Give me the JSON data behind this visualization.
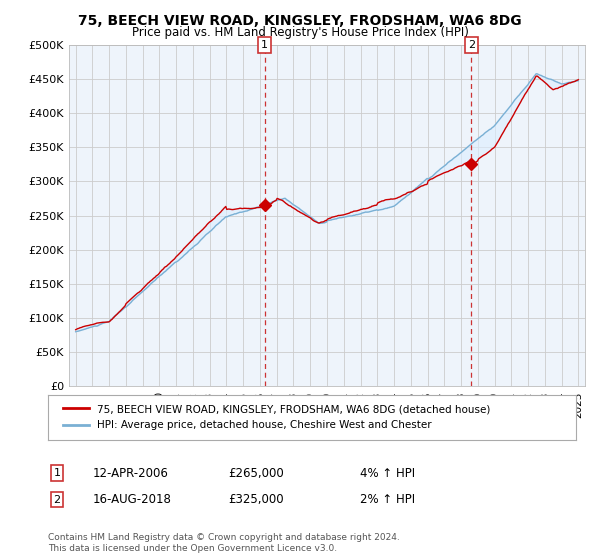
{
  "title": "75, BEECH VIEW ROAD, KINGSLEY, FRODSHAM, WA6 8DG",
  "subtitle": "Price paid vs. HM Land Registry's House Price Index (HPI)",
  "legend_line1": "75, BEECH VIEW ROAD, KINGSLEY, FRODSHAM, WA6 8DG (detached house)",
  "legend_line2": "HPI: Average price, detached house, Cheshire West and Chester",
  "annotation1_date": "12-APR-2006",
  "annotation1_price": "£265,000",
  "annotation1_hpi": "4% ↑ HPI",
  "annotation2_date": "16-AUG-2018",
  "annotation2_price": "£325,000",
  "annotation2_hpi": "2% ↑ HPI",
  "footer": "Contains HM Land Registry data © Crown copyright and database right 2024.\nThis data is licensed under the Open Government Licence v3.0.",
  "ylim": [
    0,
    500000
  ],
  "yticks": [
    0,
    50000,
    100000,
    150000,
    200000,
    250000,
    300000,
    350000,
    400000,
    450000,
    500000
  ],
  "background_color": "#ffffff",
  "grid_color": "#cccccc",
  "red_color": "#cc0000",
  "blue_color": "#7ab0d4",
  "fill_color": "#ddeeff",
  "sale1_x": 2006.28,
  "sale1_y": 265000,
  "sale2_x": 2018.62,
  "sale2_y": 325000,
  "xlim_left": 1994.6,
  "xlim_right": 2025.4
}
